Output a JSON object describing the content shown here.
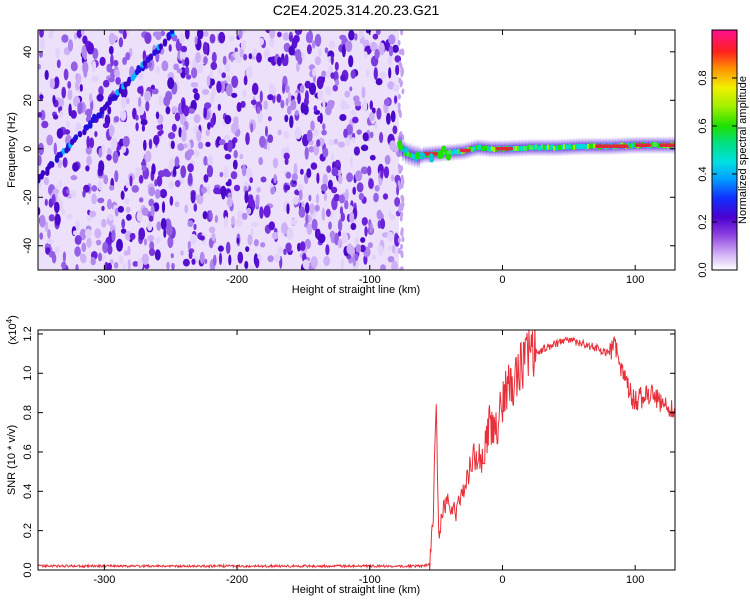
{
  "title": "C2E4.2025.314.20.23.G21",
  "colors": {
    "snr_line": "#e8303a",
    "spectral_ridge": "#e0283a",
    "speckle": "#6a1fd8",
    "axes": "#000000",
    "background": "#ffffff"
  },
  "chart_data": [
    {
      "type": "heatmap",
      "name": "spectrogram",
      "xlabel": "Height of straight line (km)",
      "ylabel": "Frequency (Hz)",
      "xlim": [
        -350,
        130
      ],
      "ylim": [
        -50,
        49
      ],
      "xticks": [
        -300,
        -200,
        -100,
        0,
        100
      ],
      "yticks": [
        -40,
        -20,
        0,
        20,
        40
      ],
      "xtick_labels": [
        "-300",
        "-200",
        "-100",
        "0",
        "100"
      ],
      "ytick_labels": [
        "-40",
        "-20",
        "0",
        "20",
        "40"
      ],
      "noise_region_x": [
        -350,
        -78
      ],
      "doppler_trace_x": [
        -350,
        -248
      ],
      "doppler_trace_y": [
        -13,
        48
      ],
      "signal_ridge": {
        "x": [
          -78,
          -75,
          -70,
          -65,
          -60,
          -50,
          -40,
          -30,
          -20,
          -10,
          0,
          20,
          40,
          60,
          80,
          100,
          130
        ],
        "y": [
          1.5,
          -1.5,
          -2.5,
          -3.5,
          -2.5,
          -2.0,
          -1.5,
          -1.0,
          0.5,
          0.0,
          0.0,
          0.5,
          0.5,
          1.0,
          1.0,
          1.5,
          1.5
        ]
      }
    },
    {
      "type": "colorbar",
      "name": "amplitude-colorbar",
      "label": "Normalized spectral amplitude",
      "range": [
        0,
        1
      ],
      "ticks": [
        0.0,
        0.2,
        0.4,
        0.6,
        0.8
      ],
      "tick_labels": [
        "0.0",
        "0.2",
        "0.4",
        "0.6",
        "0.8"
      ]
    },
    {
      "type": "line",
      "name": "snr",
      "xlabel": "Height of straight line (km)",
      "ylabel": "SNR (10 * v/v)",
      "scale_label": "(x10",
      "scale_exponent": "4",
      "scale_suffix": ")",
      "xlim": [
        -350,
        130
      ],
      "ylim": [
        0,
        1.22
      ],
      "xticks": [
        -300,
        -200,
        -100,
        0,
        100
      ],
      "yticks": [
        0.0,
        0.2,
        0.4,
        0.6,
        0.8,
        1.0,
        1.2
      ],
      "xtick_labels": [
        "-300",
        "-200",
        "-100",
        "0",
        "100"
      ],
      "ytick_labels": [
        "0.0",
        "0.2",
        "0.4",
        "0.6",
        "0.8",
        "1.0",
        "1.2"
      ],
      "series": [
        {
          "name": "SNR",
          "x": [
            -350,
            -100,
            -60,
            -55,
            -52,
            -50,
            -48,
            -45,
            -40,
            -35,
            -30,
            -25,
            -20,
            -15,
            -10,
            -5,
            0,
            5,
            10,
            15,
            20,
            30,
            40,
            50,
            60,
            70,
            80,
            85,
            90,
            100,
            110,
            120,
            130
          ],
          "y": [
            0.02,
            0.02,
            0.02,
            0.03,
            0.3,
            0.85,
            0.2,
            0.3,
            0.35,
            0.28,
            0.4,
            0.5,
            0.6,
            0.55,
            0.75,
            0.7,
            0.85,
            0.95,
            0.98,
            1.05,
            1.08,
            1.12,
            1.15,
            1.17,
            1.15,
            1.13,
            1.1,
            1.15,
            1.0,
            0.85,
            0.9,
            0.85,
            0.8
          ]
        }
      ]
    }
  ]
}
